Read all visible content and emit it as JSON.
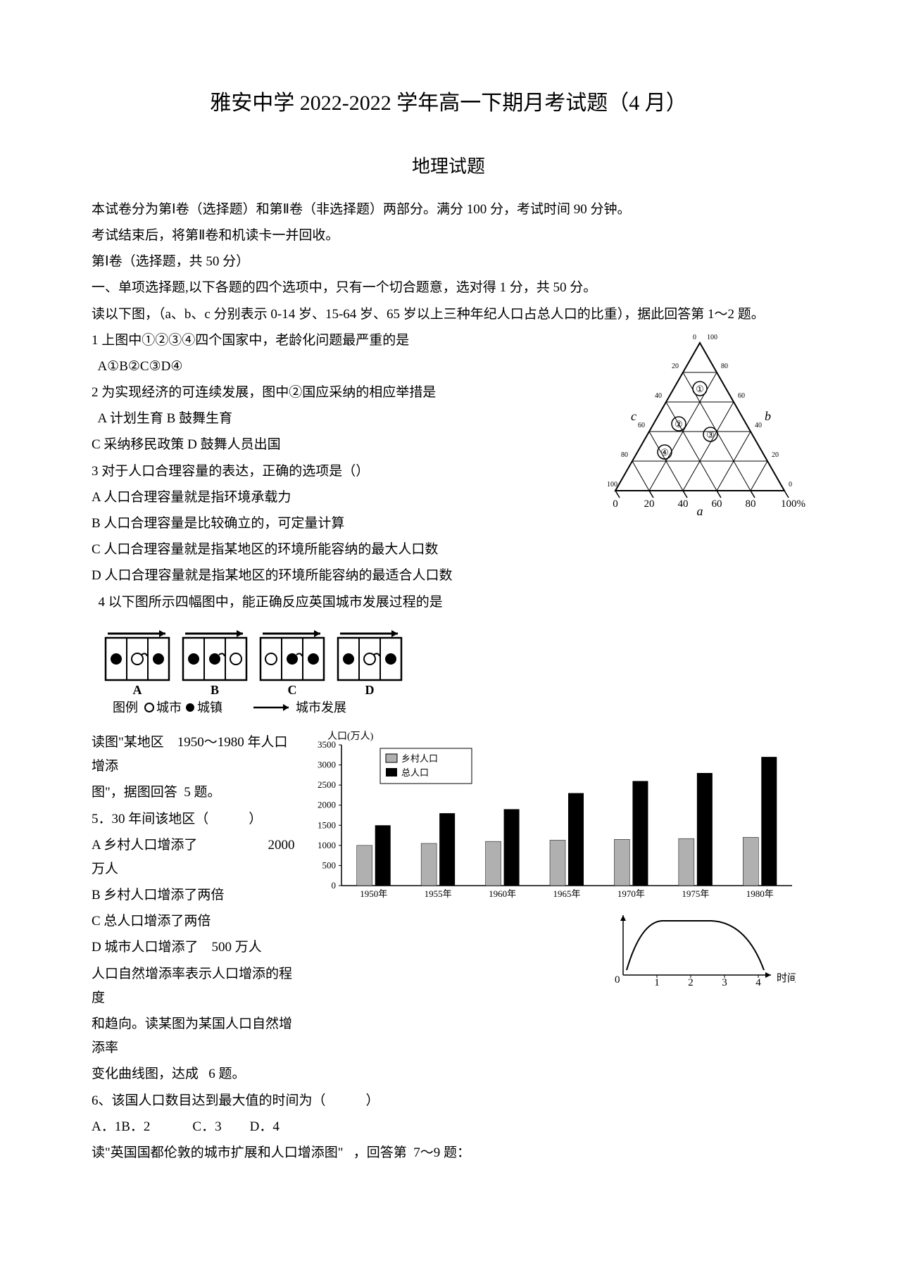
{
  "title": "雅安中学 2022-2022 学年高一下期月考试题（4 月）",
  "subtitle": "地理试题",
  "intro1": "本试卷分为第Ⅰ卷（选择题）和第Ⅱ卷（非选择题）两部分。满分 100 分，考试时间 90 分钟。",
  "intro2": "考试结束后，将第Ⅱ卷和机读卡一并回收。",
  "section1": "第Ⅰ卷（选择题，共 50 分）",
  "section2": "一、单项选择题,以下各题的四个选项中，只有一个切合题意，选对得 1 分，共 50 分。",
  "read1": "读以下图，（a、b、c 分别表示 0-14 岁、15-64 岁、65 岁以上三种年纪人口占总人口的比重），据此回答第 1～2 题。",
  "q1": "1 上图中①②③④四个国家中，老龄化问题最严重的是",
  "q1opts": "  A①B②C③D④",
  "q2": "2 为实现经济的可连续发展，图中②国应采纳的相应举措是",
  "q2opts1": "  A 计划生育 B 鼓舞生育",
  "q2opts2": "C 采纳移民政策 D 鼓舞人员出国",
  "q3": "3 对于人口合理容量的表达，正确的选项是（）",
  "q3a": "A 人口合理容量就是指环境承载力",
  "q3b": "B 人口合理容量是比较确立的，可定量计算",
  "q3c": "C 人口合理容量就是指某地区的环境所能容纳的最大人口数",
  "q3d": "D 人口合理容量就是指某地区的环境所能容纳的最适合人口数",
  "q4": "  4 以下图所示四幅图中，能正确反应英国城市发展过程的是",
  "urban_legend": "图例 ○城市 ●城镇",
  "urban_arrow": "城市发展",
  "urban_labels": [
    "A",
    "B",
    "C",
    "D"
  ],
  "read5a": "读图\"某地区",
  "read5b": "1950～1980 年人口增添",
  "read5c": "图\"，据图回答",
  "read5d": "5 题。",
  "q5": "5．30 年间该地区（　　　）",
  "q5a_l": "A 乡村人口增添了",
  "q5a_r": "2000 万人",
  "q5b": "B 乡村人口增添了两倍",
  "q5c": "C 总人口增添了两倍",
  "q5d_l": "D 城市人口增添了",
  "q5d_r": "500 万人",
  "grline1": "人口自然增添率表示人口增添的程度",
  "grline2": "和趋向。读某图为某国人口自然增添率",
  "grline3": "变化曲线图，达成",
  "grline3b": "6 题。",
  "q6": "6、该国人口数目达到最大值的时间为（　　　）",
  "q6opts_a": "A．1B．2",
  "q6opts_b": "C．3",
  "q6opts_c": "D．4",
  "read7": "读\"英国国都伦敦的城市扩展和人口增添图\"",
  "read7b": "，回答第",
  "read7c": "7～9 题：",
  "bar_chart": {
    "ylabel": "人口(万人)",
    "ymax": 3500,
    "ytick": 500,
    "legend": [
      "乡村人口",
      "总人口"
    ],
    "categories": [
      "1950年",
      "1955年",
      "1960年",
      "1965年",
      "1970年",
      "1975年",
      "1980年"
    ],
    "rural": [
      1000,
      1050,
      1100,
      1130,
      1150,
      1170,
      1200
    ],
    "total": [
      1500,
      1800,
      1900,
      2300,
      2600,
      2800,
      3200
    ],
    "rural_color": "#b0b0b0",
    "total_color": "#000000",
    "axis_color": "#000000"
  },
  "line_chart": {
    "xlabel": "时间",
    "xticks": [
      "1",
      "2",
      "3",
      "4"
    ],
    "curve": [
      [
        0,
        0.1
      ],
      [
        0.6,
        0.95
      ],
      [
        2.3,
        0.95
      ],
      [
        4,
        0.05
      ]
    ],
    "axis_color": "#000000"
  }
}
